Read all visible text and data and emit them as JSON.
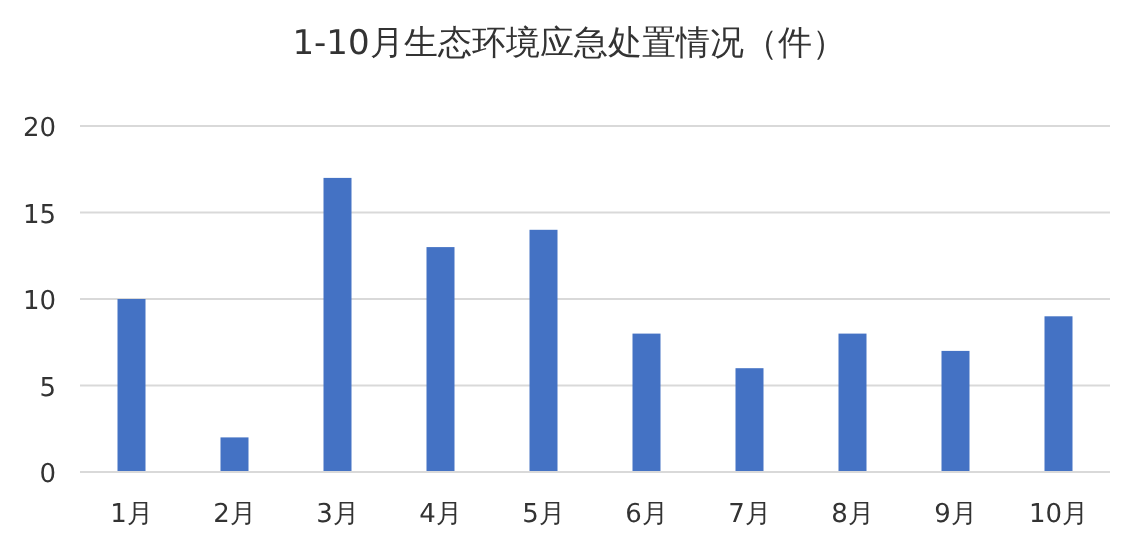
{
  "chart_data": {
    "type": "bar",
    "title": "1-10月生态环境应急处置情况（件）",
    "categories": [
      "1月",
      "2月",
      "3月",
      "4月",
      "5月",
      "6月",
      "7月",
      "8月",
      "9月",
      "10月"
    ],
    "values": [
      10,
      2,
      17,
      13,
      14,
      8,
      6,
      8,
      7,
      9
    ],
    "color": "#4472c4",
    "ylim": [
      0,
      20
    ],
    "yticks": [
      0,
      5,
      10,
      15,
      20
    ],
    "grid": "y"
  }
}
